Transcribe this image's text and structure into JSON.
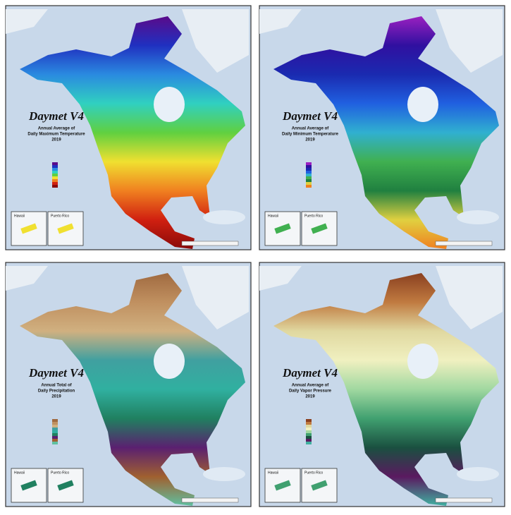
{
  "panels": [
    {
      "title": "Daymet V4",
      "subtitle": [
        "Annual Average of",
        "Daily Maximum Temperature"
      ],
      "year": "2019",
      "insets": [
        "Hawaii",
        "Puerto Rico"
      ]
    },
    {
      "title": "Daymet V4",
      "subtitle": [
        "Annual Average of",
        "Daily Minimum Temperature"
      ],
      "year": "2019",
      "insets": [
        "Hawaii",
        "Puerto Rico"
      ]
    },
    {
      "title": "Daymet V4",
      "subtitle": [
        "Annual Total of",
        "Daily Precipitation"
      ],
      "year": "2019",
      "insets": [
        "Hawaii",
        "Puerto Rico"
      ]
    },
    {
      "title": "Daymet V4",
      "subtitle": [
        "Annual Average of",
        "Daily Vapor Pressure"
      ],
      "year": "2019",
      "insets": [
        "Hawaii",
        "Puerto Rico"
      ]
    }
  ]
}
